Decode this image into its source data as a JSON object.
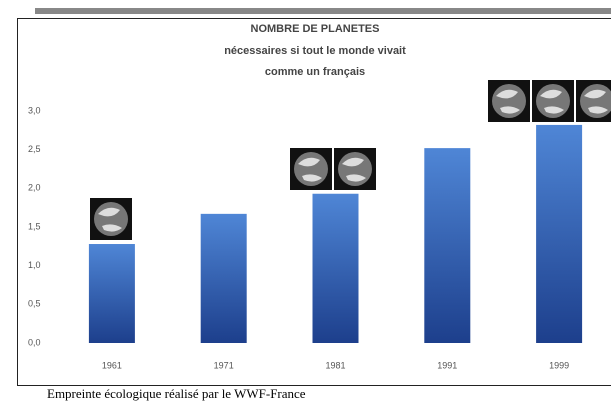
{
  "chart_data": {
    "type": "bar",
    "title": "NOMBRE DE PLANETES",
    "subtitle": [
      "nécessaires si tout le monde vivait",
      "comme un français"
    ],
    "caption": "Empreinte écologique réalisé par le WWF-France",
    "categories": [
      "1961",
      "1971",
      "1981",
      "1991",
      "1999"
    ],
    "values": [
      1.28,
      1.67,
      1.93,
      2.52,
      2.82
    ],
    "color": [
      "#4f86d6",
      "#1d3f8c"
    ],
    "ylim": [
      0,
      3
    ],
    "yticks": [
      {
        "value": 0,
        "label": "0,0"
      },
      {
        "value": 0.5,
        "label": "0,5"
      },
      {
        "value": 1,
        "label": "1,0"
      },
      {
        "value": 1.5,
        "label": "1,5"
      },
      {
        "value": 2,
        "label": "2,0"
      },
      {
        "value": 2.5,
        "label": "2,5"
      },
      {
        "value": 3,
        "label": "3,0"
      }
    ],
    "grid": false
  }
}
